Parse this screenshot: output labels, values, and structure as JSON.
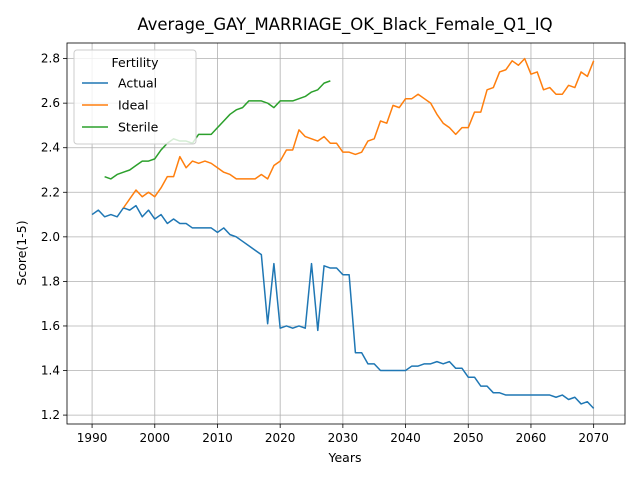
{
  "chart_data": {
    "type": "line",
    "title": "Average_GAY_MARRIAGE_OK_Black_Female_Q1_IQ",
    "xlabel": "Years",
    "ylabel": "Score(1-5)",
    "xlim": [
      1986,
      2075
    ],
    "ylim": [
      1.16,
      2.87
    ],
    "xticks": [
      1990,
      2000,
      2010,
      2020,
      2030,
      2040,
      2050,
      2060,
      2070
    ],
    "yticks": [
      1.2,
      1.4,
      1.6,
      1.8,
      2.0,
      2.2,
      2.4,
      2.6,
      2.8
    ],
    "grid": true,
    "legend": {
      "title": "Fertility",
      "position": "top-left"
    },
    "series": [
      {
        "name": "Actual",
        "color": "#1f77b4",
        "x": [
          1990,
          1991,
          1992,
          1993,
          1994,
          1995,
          1996,
          1997,
          1998,
          1999,
          2000,
          2001,
          2002,
          2003,
          2004,
          2005,
          2006,
          2007,
          2008,
          2009,
          2010,
          2011,
          2012,
          2013,
          2014,
          2015,
          2016,
          2017,
          2018,
          2019,
          2020,
          2021,
          2022,
          2023,
          2024,
          2025,
          2026,
          2027,
          2028,
          2029,
          2030,
          2031,
          2032,
          2033,
          2034,
          2035,
          2036,
          2037,
          2038,
          2039,
          2040,
          2041,
          2042,
          2043,
          2044,
          2045,
          2046,
          2047,
          2048,
          2049,
          2050,
          2051,
          2052,
          2053,
          2054,
          2055,
          2056,
          2057,
          2058,
          2059,
          2060,
          2061,
          2062,
          2063,
          2064,
          2065,
          2066,
          2067,
          2068,
          2069,
          2070
        ],
        "values": [
          2.1,
          2.12,
          2.09,
          2.1,
          2.09,
          2.13,
          2.12,
          2.14,
          2.09,
          2.12,
          2.08,
          2.1,
          2.06,
          2.08,
          2.06,
          2.06,
          2.04,
          2.04,
          2.04,
          2.04,
          2.02,
          2.04,
          2.01,
          2.0,
          1.98,
          1.96,
          1.94,
          1.92,
          1.61,
          1.88,
          1.59,
          1.6,
          1.59,
          1.6,
          1.59,
          1.88,
          1.58,
          1.87,
          1.86,
          1.86,
          1.83,
          1.83,
          1.48,
          1.48,
          1.43,
          1.43,
          1.4,
          1.4,
          1.4,
          1.4,
          1.4,
          1.42,
          1.42,
          1.43,
          1.43,
          1.44,
          1.43,
          1.44,
          1.41,
          1.41,
          1.37,
          1.37,
          1.33,
          1.33,
          1.3,
          1.3,
          1.29,
          1.29,
          1.29,
          1.29,
          1.29,
          1.29,
          1.29,
          1.29,
          1.28,
          1.29,
          1.27,
          1.28,
          1.25,
          1.26,
          1.23
        ]
      },
      {
        "name": "Ideal",
        "color": "#ff7f0e",
        "x": [
          1995,
          1996,
          1997,
          1998,
          1999,
          2000,
          2001,
          2002,
          2003,
          2004,
          2005,
          2006,
          2007,
          2008,
          2009,
          2010,
          2011,
          2012,
          2013,
          2014,
          2015,
          2016,
          2017,
          2018,
          2019,
          2020,
          2021,
          2022,
          2023,
          2024,
          2025,
          2026,
          2027,
          2028,
          2029,
          2030,
          2031,
          2032,
          2033,
          2034,
          2035,
          2036,
          2037,
          2038,
          2039,
          2040,
          2041,
          2042,
          2043,
          2044,
          2045,
          2046,
          2047,
          2048,
          2049,
          2050,
          2051,
          2052,
          2053,
          2054,
          2055,
          2056,
          2057,
          2058,
          2059,
          2060,
          2061,
          2062,
          2063,
          2064,
          2065,
          2066,
          2067,
          2068,
          2069,
          2070
        ],
        "values": [
          2.13,
          2.17,
          2.21,
          2.18,
          2.2,
          2.18,
          2.22,
          2.27,
          2.27,
          2.36,
          2.31,
          2.34,
          2.33,
          2.34,
          2.33,
          2.31,
          2.29,
          2.28,
          2.26,
          2.26,
          2.26,
          2.26,
          2.28,
          2.26,
          2.32,
          2.34,
          2.39,
          2.39,
          2.48,
          2.45,
          2.44,
          2.43,
          2.45,
          2.42,
          2.42,
          2.38,
          2.38,
          2.37,
          2.38,
          2.43,
          2.44,
          2.52,
          2.51,
          2.59,
          2.58,
          2.62,
          2.62,
          2.64,
          2.62,
          2.6,
          2.55,
          2.51,
          2.49,
          2.46,
          2.49,
          2.49,
          2.56,
          2.56,
          2.66,
          2.67,
          2.74,
          2.75,
          2.79,
          2.77,
          2.8,
          2.73,
          2.74,
          2.66,
          2.67,
          2.64,
          2.64,
          2.68,
          2.67,
          2.74,
          2.72,
          2.79
        ]
      },
      {
        "name": "Sterile",
        "color": "#2ca02c",
        "x": [
          1992,
          1993,
          1994,
          1995,
          1996,
          1997,
          1998,
          1999,
          2000,
          2001,
          2002,
          2003,
          2004,
          2005,
          2006,
          2007,
          2008,
          2009,
          2010,
          2011,
          2012,
          2013,
          2014,
          2015,
          2016,
          2017,
          2018,
          2019,
          2020,
          2021,
          2022,
          2023,
          2024,
          2025,
          2026,
          2027,
          2028
        ],
        "values": [
          2.27,
          2.26,
          2.28,
          2.29,
          2.3,
          2.32,
          2.34,
          2.34,
          2.35,
          2.39,
          2.42,
          2.44,
          2.43,
          2.43,
          2.42,
          2.46,
          2.46,
          2.46,
          2.49,
          2.52,
          2.55,
          2.57,
          2.58,
          2.61,
          2.61,
          2.61,
          2.6,
          2.58,
          2.61,
          2.61,
          2.61,
          2.62,
          2.63,
          2.65,
          2.66,
          2.69,
          2.7
        ]
      }
    ]
  }
}
